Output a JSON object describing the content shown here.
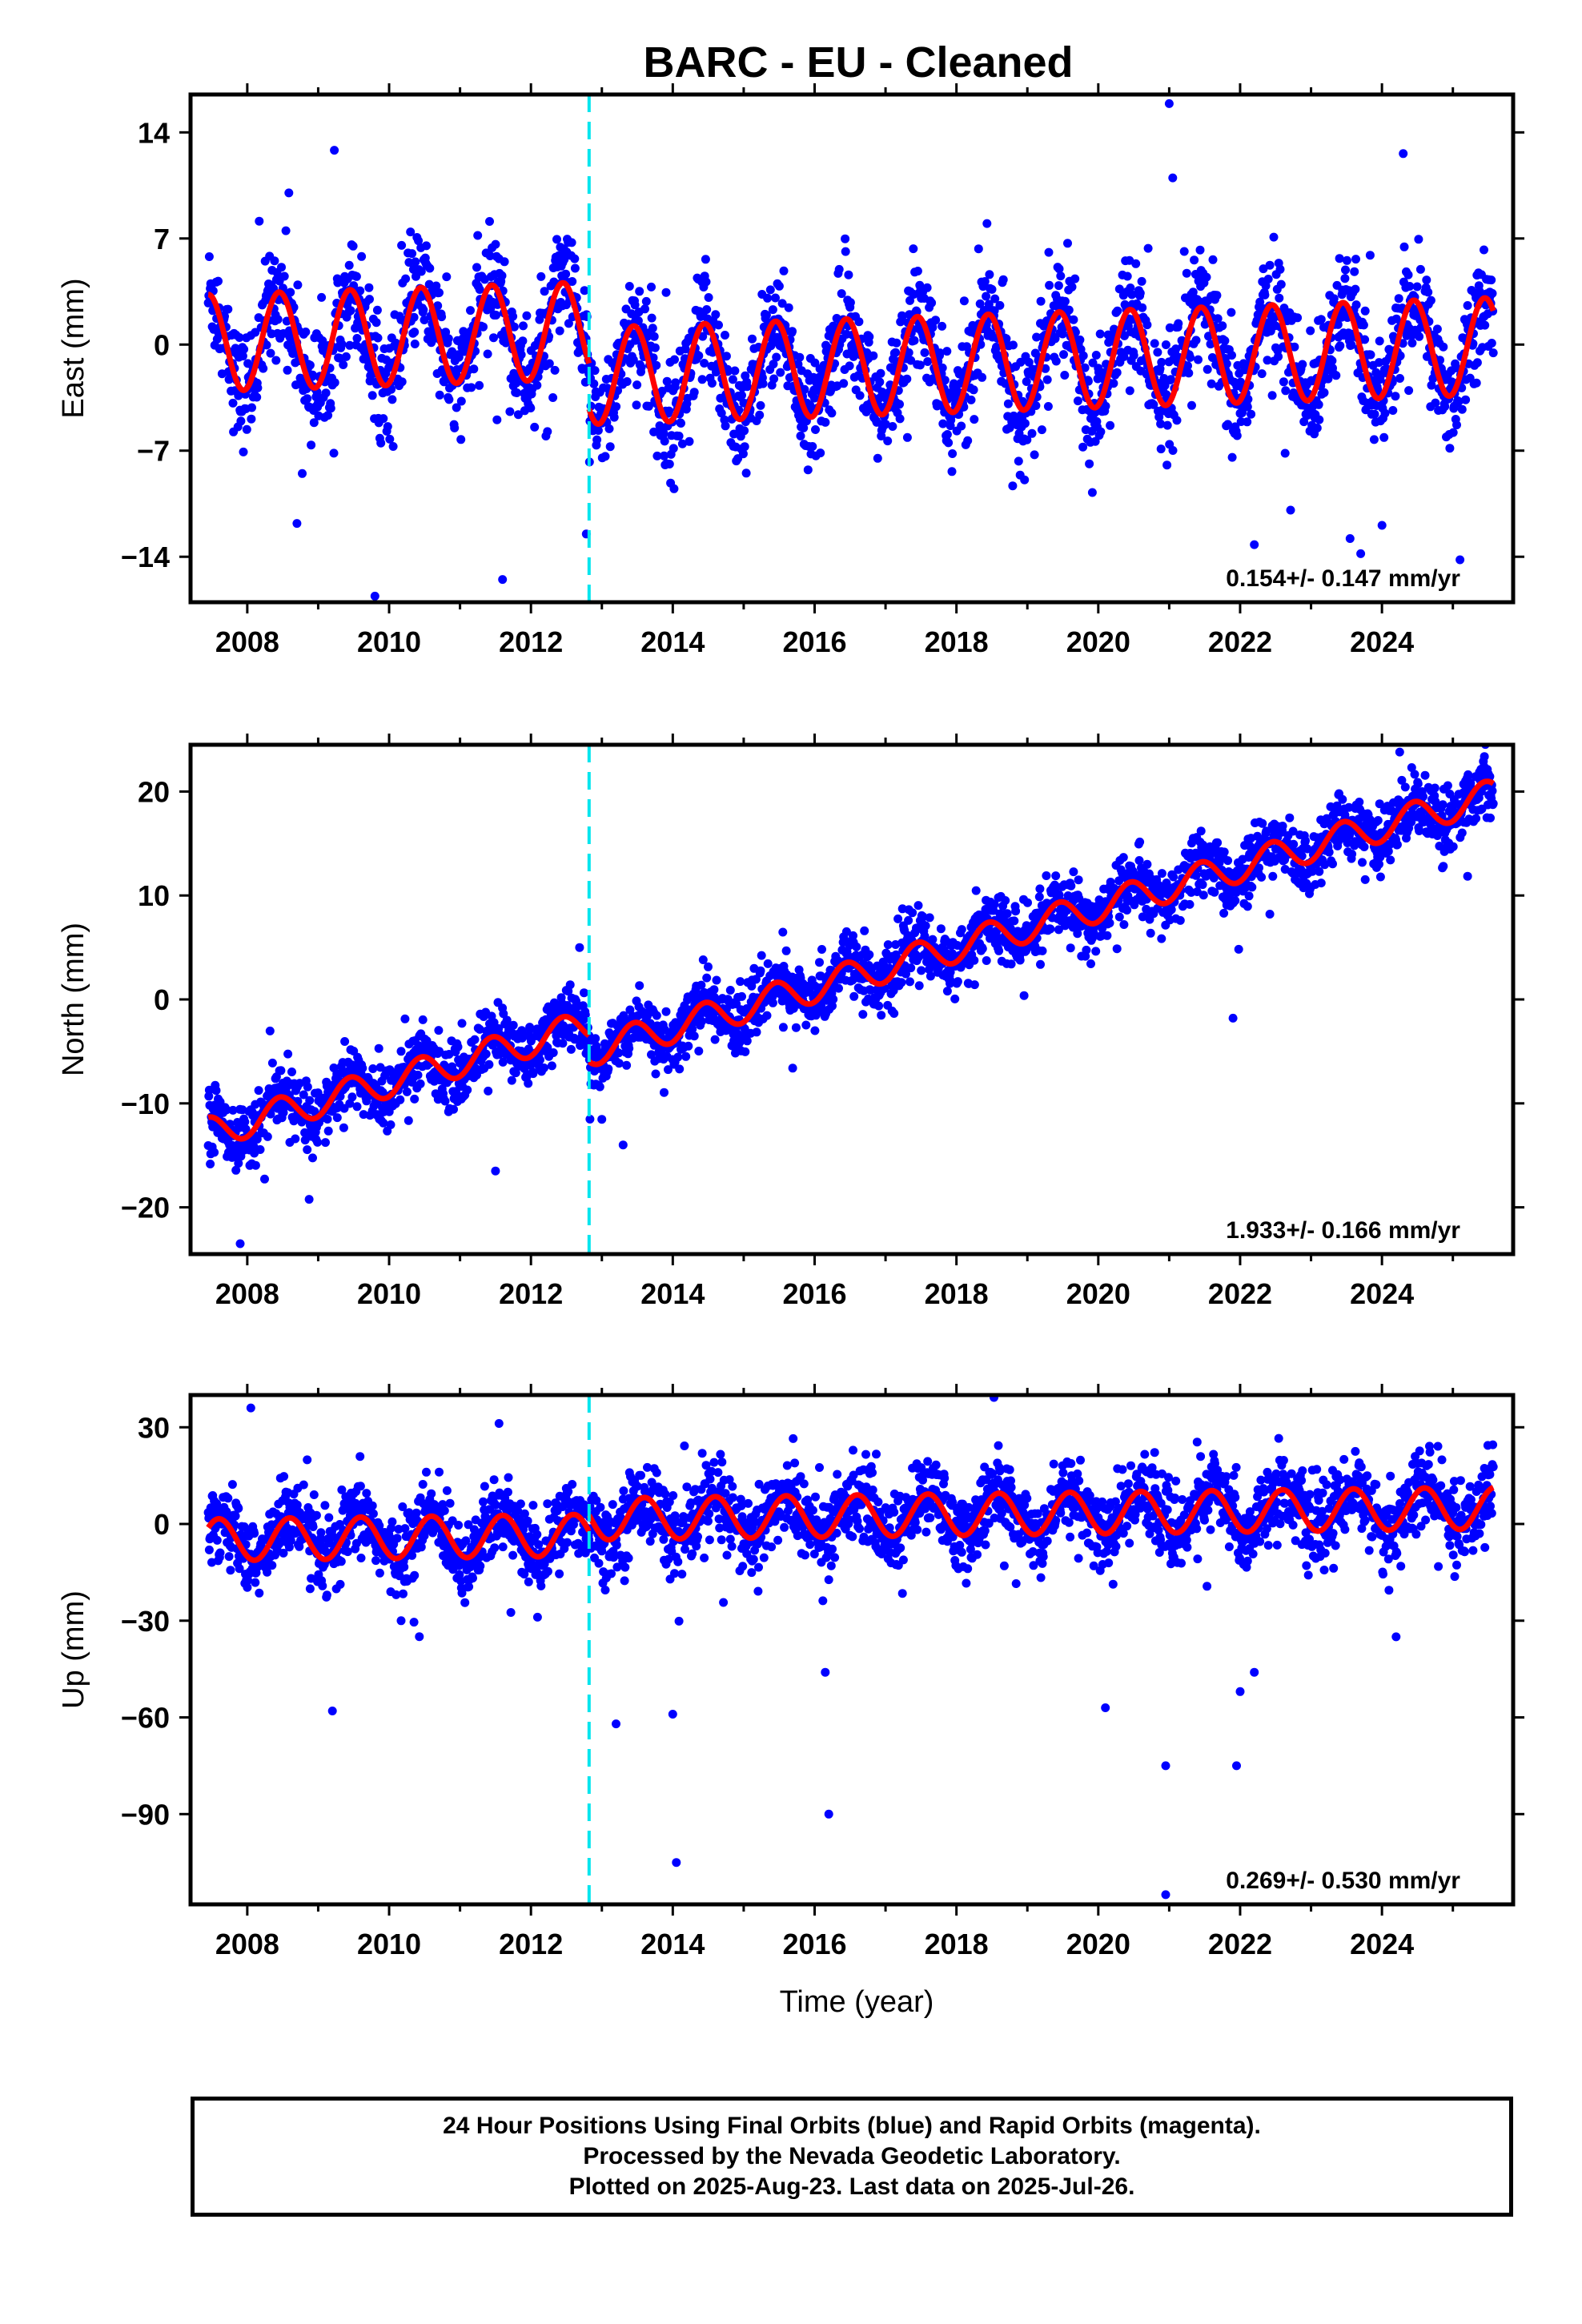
{
  "title": "BARC  - EU - Cleaned",
  "xlabel": "Time (year)",
  "footer": {
    "line1": "24 Hour Positions Using Final Orbits (blue) and Rapid Orbits (magenta).",
    "line2": "Processed by the Nevada Geodetic Laboratory.",
    "line3": "Plotted on 2025-Aug-23. Last data on 2025-Jul-26."
  },
  "colors": {
    "points": "#0000ff",
    "model": "#ff0000",
    "event_line": "#00e5ee",
    "frame": "#000000"
  },
  "chart_data": [
    {
      "type": "scatter",
      "component": "east",
      "ylabel": "East (mm)",
      "xlim": [
        2007.2,
        2025.85
      ],
      "ylim": [
        -17,
        16.5
      ],
      "yticks": [
        14,
        7,
        0,
        -7,
        -14
      ],
      "xticks": [
        2008,
        2010,
        2012,
        2014,
        2016,
        2018,
        2020,
        2022,
        2024
      ],
      "grid": false,
      "data_range": [
        2007.45,
        2025.57
      ],
      "rate_text": "0.154+/- 0.147 mm/yr",
      "rate": 0.154,
      "seasonal_amplitude": 3.2,
      "seasonal_peak_phase": 0.45,
      "noise_std": 1.8,
      "equipment_change": 2012.82,
      "offset_at_event": -3.0,
      "outliers": [
        [
          2021.0,
          15.9
        ],
        [
          2021.05,
          11.0
        ],
        [
          2024.3,
          12.6
        ],
        [
          2009.8,
          -16.6
        ],
        [
          2011.6,
          -15.5
        ],
        [
          2012.78,
          -12.5
        ],
        [
          2022.2,
          -13.2
        ],
        [
          2023.55,
          -12.8
        ],
        [
          2023.7,
          -13.8
        ],
        [
          2025.1,
          -14.2
        ],
        [
          2008.7,
          -11.8
        ]
      ]
    },
    {
      "type": "scatter",
      "component": "north",
      "ylabel": "North (mm)",
      "xlim": [
        2007.2,
        2025.85
      ],
      "ylim": [
        -24.5,
        24.5
      ],
      "yticks": [
        20,
        10,
        0,
        -10,
        -20
      ],
      "xticks": [
        2008,
        2010,
        2012,
        2014,
        2016,
        2018,
        2020,
        2022,
        2024
      ],
      "grid": false,
      "data_range": [
        2007.45,
        2025.57
      ],
      "rate_text": "1.933+/- 0.166 mm/yr",
      "rate": 1.933,
      "value_at_2007_5": -14.0,
      "seasonal_amplitude": 1.5,
      "seasonal_peak_phase": 0.45,
      "noise_std": 1.5,
      "equipment_change": 2012.82,
      "offset_at_event": -2.5,
      "outliers": [
        [
          2024.25,
          23.8
        ],
        [
          2007.9,
          -23.5
        ],
        [
          2011.5,
          -16.5
        ],
        [
          2021.9,
          -1.8
        ],
        [
          2013.3,
          -14.0
        ]
      ]
    },
    {
      "type": "scatter",
      "component": "up",
      "ylabel": "Up (mm)",
      "xlim": [
        2007.2,
        2025.85
      ],
      "ylim": [
        -118,
        40
      ],
      "yticks": [
        30,
        0,
        -30,
        -60,
        -90
      ],
      "xticks": [
        2008,
        2010,
        2012,
        2014,
        2016,
        2018,
        2020,
        2022,
        2024
      ],
      "grid": false,
      "data_range": [
        2007.45,
        2025.57
      ],
      "rate_text": "0.269+/- 0.530 mm/yr",
      "rate": 0.269,
      "seasonal_amplitude": 6.5,
      "seasonal_peak_phase": 0.6,
      "noise_std": 6.0,
      "equipment_change": 2012.82,
      "offset_at_event": 5.0,
      "outliers": [
        [
          2008.05,
          36
        ],
        [
          2014.05,
          -105
        ],
        [
          2016.2,
          -90
        ],
        [
          2020.95,
          -115
        ],
        [
          2020.95,
          -75
        ],
        [
          2021.95,
          -75
        ],
        [
          2020.1,
          -57
        ],
        [
          2013.2,
          -62
        ],
        [
          2014.0,
          -59
        ],
        [
          2009.2,
          -58
        ],
        [
          2022.0,
          -52
        ],
        [
          2022.2,
          -46
        ],
        [
          2024.2,
          -35
        ],
        [
          2016.15,
          -46
        ]
      ]
    }
  ]
}
